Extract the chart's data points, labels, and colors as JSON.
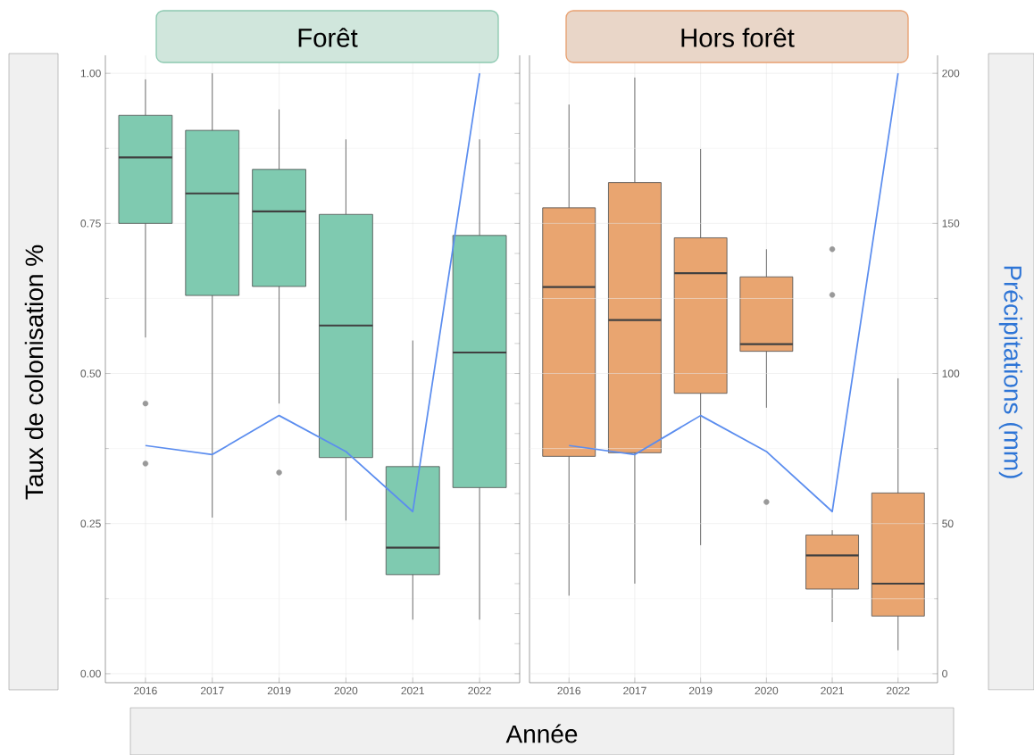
{
  "chart_data": [
    {
      "type": "box",
      "title": "Forêt",
      "ylabel": "Taux de colonisation %",
      "xlabel": "Année",
      "color": "#7fcab0",
      "categories": [
        "2016",
        "2017",
        "2019",
        "2020",
        "2021",
        "2022"
      ],
      "boxes": [
        {
          "low": 0.56,
          "q1": 0.75,
          "median": 0.86,
          "q3": 0.93,
          "high": 0.99,
          "outliers": [
            0.45,
            0.35
          ]
        },
        {
          "low": 0.26,
          "q1": 0.63,
          "median": 0.8,
          "q3": 0.905,
          "high": 1.0
        },
        {
          "low": 0.45,
          "q1": 0.645,
          "median": 0.77,
          "q3": 0.84,
          "high": 0.94,
          "outliers": [
            0.335
          ]
        },
        {
          "low": 0.255,
          "q1": 0.36,
          "median": 0.58,
          "q3": 0.765,
          "high": 0.89
        },
        {
          "low": 0.09,
          "q1": 0.165,
          "median": 0.21,
          "q3": 0.345,
          "high": 0.555
        },
        {
          "low": 0.09,
          "q1": 0.31,
          "median": 0.535,
          "q3": 0.73,
          "high": 0.89
        }
      ],
      "series": [
        {
          "type": "line",
          "axis": "y2",
          "color": "#5b8def",
          "values": [
            76,
            73,
            86,
            74,
            54,
            200
          ]
        }
      ],
      "ylim": [
        -0.015,
        1.03
      ],
      "yticks": [
        {
          "value": 0,
          "label": "0.00"
        },
        0.25,
        {
          "value": 0.5,
          "label": "0.50"
        },
        0.75,
        {
          "value": 1,
          "label": "1.00"
        }
      ],
      "y2lim": [
        -3,
        206
      ],
      "grid": true,
      "tick_labels": [
        "x",
        "y"
      ]
    },
    {
      "type": "box",
      "title": "Hors forêt",
      "y2label": "Précipitations (mm)",
      "color": "#e9a570",
      "categories": [
        "2016",
        "2017",
        "2019",
        "2020",
        "2021",
        "2022"
      ],
      "boxes": [
        {
          "low": 0.13,
          "q1": 0.362,
          "median": 0.644,
          "q3": 0.776,
          "high": 0.948
        },
        {
          "low": 0.15,
          "q1": 0.368,
          "median": 0.589,
          "q3": 0.818,
          "high": 0.993
        },
        {
          "low": 0.214,
          "q1": 0.467,
          "median": 0.667,
          "q3": 0.726,
          "high": 0.874
        },
        {
          "low": 0.443,
          "q1": 0.537,
          "median": 0.549,
          "q3": 0.661,
          "high": 0.707,
          "outliers": [
            0.286
          ]
        },
        {
          "low": 0.086,
          "q1": 0.141,
          "median": 0.197,
          "q3": 0.231,
          "high": 0.239,
          "outliers": [
            0.707,
            0.631
          ]
        },
        {
          "low": 0.039,
          "q1": 0.096,
          "median": 0.15,
          "q3": 0.301,
          "high": 0.492
        }
      ],
      "series": [
        {
          "type": "line",
          "axis": "y2",
          "color": "#5b8def",
          "values": [
            76,
            73,
            86,
            74,
            54,
            200
          ]
        }
      ],
      "ylim": [
        -0.015,
        1.03
      ],
      "y2lim": [
        -3,
        206
      ],
      "y2ticks": [
        0,
        50,
        100,
        150,
        200
      ],
      "grid": true,
      "tick_labels": [
        "x",
        "y2"
      ]
    }
  ]
}
